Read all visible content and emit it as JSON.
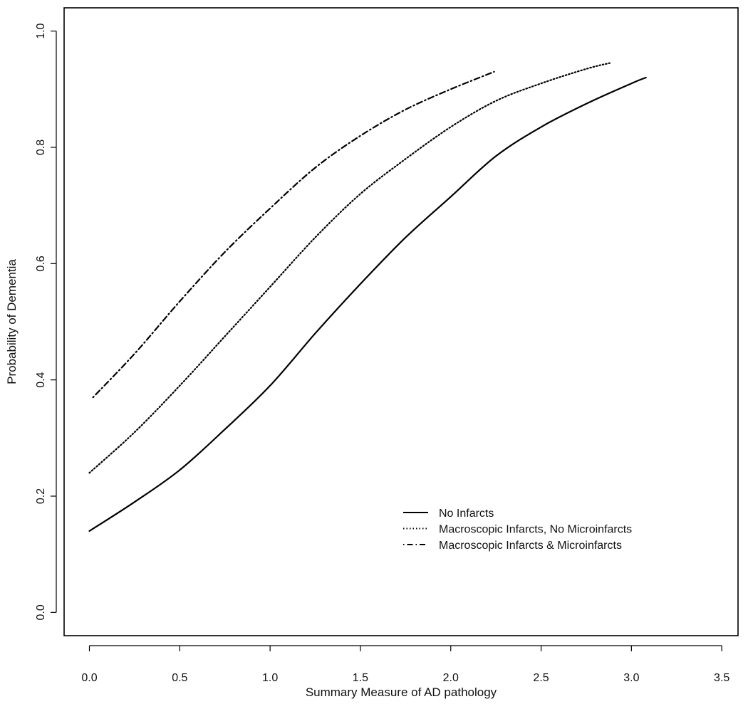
{
  "chart_data": {
    "type": "line",
    "title": "",
    "xlabel": "Summary Measure of AD pathology",
    "ylabel": "Probability of Dementia",
    "xlim": [
      -0.14,
      3.59
    ],
    "ylim": [
      -0.04,
      1.04
    ],
    "xticks": [
      0.0,
      0.5,
      1.0,
      1.5,
      2.0,
      2.5,
      3.0,
      3.5
    ],
    "xtick_labels": [
      "0.0",
      "0.5",
      "1.0",
      "1.5",
      "2.0",
      "2.5",
      "3.0",
      "3.5"
    ],
    "yticks": [
      0.0,
      0.2,
      0.4,
      0.6,
      0.8,
      1.0
    ],
    "ytick_labels": [
      "0.0",
      "0.2",
      "0.4",
      "0.6",
      "0.8",
      "1.0"
    ],
    "grid": false,
    "legend_position": "bottom-right",
    "series": [
      {
        "name": "No Infarcts",
        "style": "solid",
        "x": [
          0.0,
          0.25,
          0.5,
          0.75,
          1.0,
          1.25,
          1.5,
          1.75,
          2.0,
          2.25,
          2.5,
          2.75,
          3.0,
          3.08
        ],
        "y": [
          0.14,
          0.19,
          0.245,
          0.315,
          0.39,
          0.48,
          0.565,
          0.645,
          0.715,
          0.785,
          0.835,
          0.875,
          0.91,
          0.92
        ]
      },
      {
        "name": "Macroscopic Infarcts, No Microinfarcts",
        "style": "dotted",
        "x": [
          0.0,
          0.25,
          0.5,
          0.75,
          1.0,
          1.25,
          1.5,
          1.75,
          2.0,
          2.25,
          2.5,
          2.75,
          2.88
        ],
        "y": [
          0.24,
          0.31,
          0.39,
          0.475,
          0.56,
          0.645,
          0.72,
          0.78,
          0.835,
          0.88,
          0.91,
          0.935,
          0.945
        ]
      },
      {
        "name": "Macroscopic Infarcts & Microinfarcts",
        "style": "dotdash",
        "x": [
          0.02,
          0.25,
          0.5,
          0.75,
          1.0,
          1.25,
          1.5,
          1.75,
          2.0,
          2.24
        ],
        "y": [
          0.37,
          0.445,
          0.535,
          0.62,
          0.695,
          0.765,
          0.82,
          0.865,
          0.9,
          0.93
        ]
      }
    ]
  }
}
